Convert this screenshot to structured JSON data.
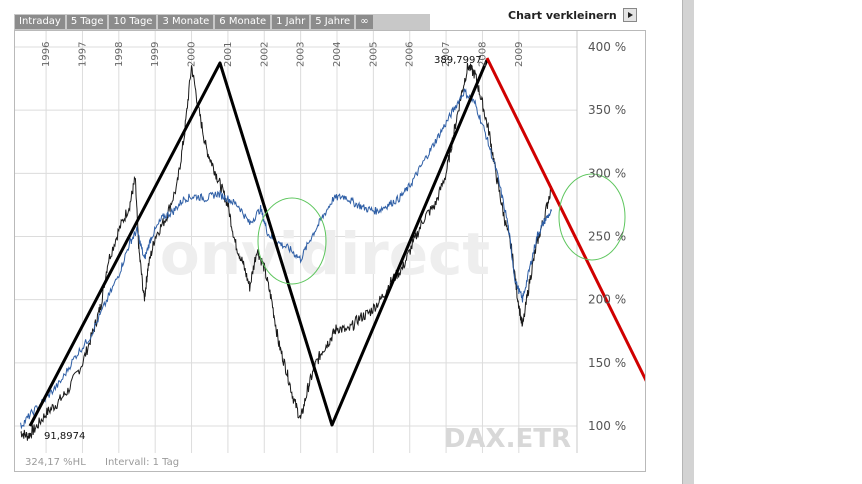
{
  "tabs": [
    "Intraday",
    "5 Tage",
    "10 Tage",
    "3 Monate",
    "6 Monate",
    "1 Jahr",
    "5 Jahre",
    "∞"
  ],
  "header": {
    "action_label": "Chart verkleinern",
    "action_icon": "play-arrow-icon"
  },
  "footer": {
    "left_text": "324,17 %HL",
    "interval_text": "Intervall: 1 Tag"
  },
  "watermark": {
    "brand": "onvidirect",
    "symbol": "DAX.ETR"
  },
  "annotations": {
    "low_label": "91,8974",
    "high_label": "389,7997"
  },
  "colors": {
    "primary_series": "#1a1a1a",
    "benchmark_series": "#2f5fa6",
    "trend_up": "#000000",
    "trend_down": "#d00000",
    "highlight_circle": "#5ec65e",
    "tab_bg": "#8c8c8c"
  },
  "chart_data": {
    "type": "line",
    "x_unit": "year",
    "xlim": [
      1995.2,
      2010.6
    ],
    "ylim": [
      75,
      410
    ],
    "grid": true,
    "y_ticks": [
      100,
      150,
      200,
      250,
      300,
      350,
      400
    ],
    "y_tick_labels": [
      "100 %",
      "150 %",
      "200 %",
      "250 %",
      "300 %",
      "350 %",
      "400 %"
    ],
    "x_ticks": [
      1996,
      1997,
      1998,
      1999,
      2000,
      2001,
      2002,
      2003,
      2004,
      2005,
      2006,
      2007,
      2008,
      2009
    ],
    "x_tick_labels": [
      "1996",
      "1997",
      "1998",
      "1999",
      "2000",
      "2001",
      "2002",
      "2003",
      "2004",
      "2005",
      "2006",
      "2007",
      "2008",
      "2009"
    ],
    "series": [
      {
        "color": "#1a1a1a",
        "x": [
          1995.3,
          1995.5,
          1995.7,
          1996.0,
          1996.3,
          1996.6,
          1997.0,
          1997.3,
          1997.5,
          1997.7,
          1998.0,
          1998.3,
          1998.45,
          1998.55,
          1998.7,
          1998.8,
          1999.0,
          1999.3,
          1999.6,
          1999.8,
          2000.0,
          2000.2,
          2000.4,
          2000.6,
          2000.8,
          2001.0,
          2001.2,
          2001.4,
          2001.6,
          2001.8,
          2002.0,
          2002.2,
          2002.4,
          2002.6,
          2002.8,
          2003.0,
          2003.2,
          2003.4,
          2003.6,
          2003.8,
          2004.0,
          2004.3,
          2004.6,
          2004.9,
          2005.2,
          2005.5,
          2005.8,
          2006.1,
          2006.4,
          2006.7,
          2007.0,
          2007.2,
          2007.4,
          2007.6,
          2007.8,
          2008.0,
          2008.2,
          2008.4,
          2008.6,
          2008.8,
          2008.95,
          2009.1,
          2009.3,
          2009.5,
          2009.7,
          2009.9
        ],
        "y": [
          95,
          92,
          98,
          110,
          118,
          128,
          150,
          175,
          195,
          230,
          255,
          275,
          296,
          240,
          200,
          225,
          250,
          265,
          290,
          330,
          385,
          350,
          320,
          305,
          290,
          275,
          245,
          230,
          210,
          240,
          225,
          200,
          165,
          145,
          122,
          105,
          130,
          148,
          160,
          168,
          178,
          175,
          185,
          190,
          200,
          215,
          225,
          245,
          265,
          275,
          300,
          330,
          360,
          385,
          378,
          355,
          330,
          295,
          265,
          240,
          205,
          178,
          215,
          245,
          265,
          290
        ]
      },
      {
        "color": "#2f5fa6",
        "x": [
          1995.3,
          1995.6,
          1996.0,
          1996.4,
          1996.8,
          1997.2,
          1997.6,
          1998.0,
          1998.3,
          1998.5,
          1998.7,
          1998.9,
          1999.2,
          1999.5,
          1999.8,
          2000.1,
          2000.4,
          2000.7,
          2001.0,
          2001.3,
          2001.6,
          2001.9,
          2002.1,
          2002.4,
          2002.7,
          2003.0,
          2003.3,
          2003.6,
          2003.9,
          2004.2,
          2004.5,
          2004.8,
          2005.1,
          2005.4,
          2005.7,
          2006.0,
          2006.3,
          2006.6,
          2006.9,
          2007.2,
          2007.5,
          2007.8,
          2008.1,
          2008.4,
          2008.7,
          2008.9,
          2009.1,
          2009.3,
          2009.5,
          2009.7,
          2009.9
        ],
        "y": [
          100,
          110,
          122,
          135,
          155,
          170,
          195,
          220,
          245,
          255,
          232,
          250,
          265,
          270,
          280,
          282,
          280,
          284,
          280,
          274,
          260,
          272,
          252,
          245,
          240,
          232,
          250,
          265,
          280,
          282,
          276,
          272,
          270,
          275,
          280,
          290,
          305,
          320,
          335,
          350,
          365,
          355,
          330,
          300,
          260,
          215,
          200,
          225,
          250,
          262,
          270
        ]
      }
    ],
    "annotations": [
      {
        "label": "91,8974",
        "x": 1995.45,
        "y": 92
      },
      {
        "label": "389,7997",
        "x": 2007.5,
        "y": 390
      }
    ]
  }
}
